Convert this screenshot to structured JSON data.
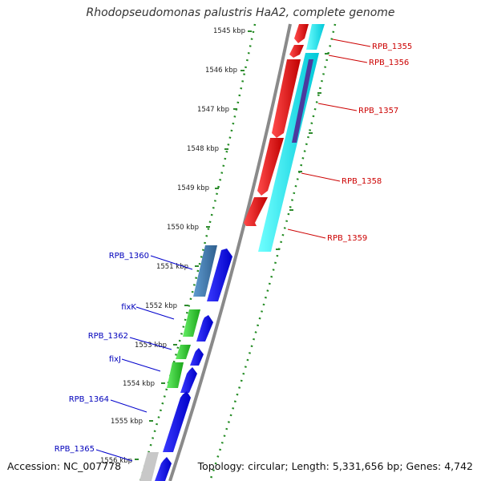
{
  "header": {
    "title": "Rhodopseudomonas palustris HaA2, complete genome"
  },
  "footer": {
    "accession": "Accession: NC_007778",
    "topology": "Topology: circular; Length: 5,331,656 bp; Genes: 4,742"
  },
  "scale": {
    "ticks": [
      "1545 kbp",
      "1546 kbp",
      "1547 kbp",
      "1548 kbp",
      "1549 kbp",
      "1550 kbp",
      "1551 kbp",
      "1552 kbp",
      "1553 kbp",
      "1554 kbp",
      "1555 kbp",
      "1556 kbp"
    ]
  },
  "genes_right": [
    "RPB_1355",
    "RPB_1356",
    "RPB_1357",
    "RPB_1358",
    "RPB_1359"
  ],
  "genes_left": [
    "RPB_1360",
    "fixK",
    "RPB_1362",
    "fixJ",
    "RPB_1364",
    "RPB_1365"
  ],
  "colors": {
    "forward_cds": "#0000ee",
    "reverse_cds": "#ee0000",
    "rna": "#00e5ee",
    "green_feature": "#33cc33",
    "steel_feature": "#4682b4",
    "backbone": "#888888",
    "dots": "#228b22"
  }
}
